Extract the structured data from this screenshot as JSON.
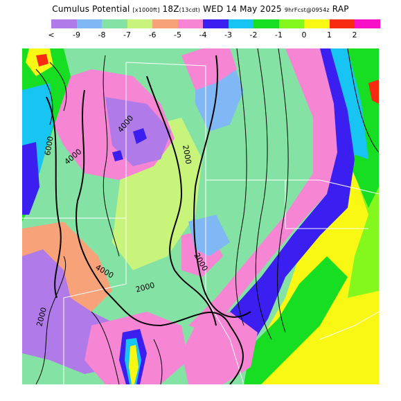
{
  "header": {
    "field": "Cumulus Potential",
    "units": "[x1000ft]",
    "valid": "18Z",
    "local_time": "(13cdt)",
    "date": "WED 14 May 2025",
    "forecast": "9hrFcst@0954z",
    "model": "RAP"
  },
  "colorbar": {
    "colors": [
      "#b07ae8",
      "#7fb8f4",
      "#84e3a4",
      "#c8f47c",
      "#f8a27a",
      "#f685d4",
      "#3b1ef0",
      "#17c4f2",
      "#17de22",
      "#84f81c",
      "#f8f814",
      "#f82a12",
      "#f810c8"
    ],
    "labels": [
      "<",
      "-9",
      "-8",
      "-7",
      "-6",
      "-5",
      "-4",
      "-3",
      "-2",
      "-1",
      "0",
      "1",
      "2"
    ]
  },
  "map": {
    "contour_labels": [
      "6000",
      "4000",
      "4000",
      "2000",
      "2000",
      "4000",
      "2000",
      "2000"
    ]
  }
}
